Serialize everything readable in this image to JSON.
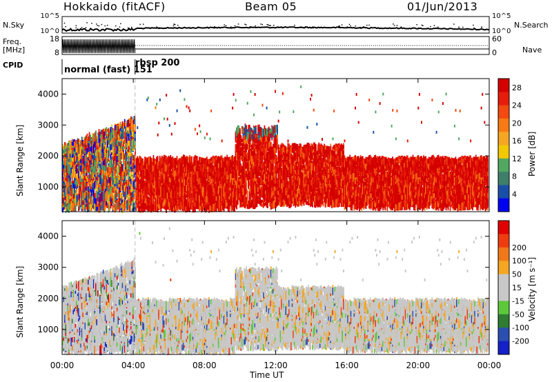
{
  "header": {
    "title": "Hokkaido (fitACF)",
    "beam": "Beam 05",
    "date": "01/Jun/2013"
  },
  "strip_labels": {
    "nsky": "N.Sky",
    "freq_line1": "Freq.",
    "freq_line2": "[MHz]",
    "cpid": "CPID",
    "nsearch": "N.Search",
    "nave": "Nave"
  },
  "cpid_segments": [
    "normal (fast) 151",
    "rbsp 200"
  ],
  "colors": {
    "power": [
      "#0000f0",
      "#1a4fa8",
      "#3f7f6a",
      "#52a860",
      "#f2c800",
      "#f5a623",
      "#f77a14",
      "#f24a10",
      "#e61c0a",
      "#d40000"
    ],
    "velocity": [
      "#1420c8",
      "#2a4fb0",
      "#2e7d32",
      "#5cc83a",
      "#c8c8c8",
      "#c8c8c8",
      "#f5a623",
      "#f07818",
      "#ee3c10",
      "#e00000"
    ]
  },
  "chart_data": [
    {
      "type": "heatmap",
      "title": "Power",
      "xlabel": "Time UT",
      "ylabel": "Slant Range [km]",
      "colorbar_label": "Power [dB]",
      "colorbar_ticks": [
        "4",
        "8",
        "12",
        "16",
        "20",
        "24",
        "28"
      ],
      "colorbar_range": [
        0,
        30
      ],
      "y_ticks": [
        "1000",
        "2000",
        "3000",
        "4000"
      ],
      "ylim": [
        200,
        4500
      ],
      "x_ticks": [
        "00:00",
        "04:00",
        "08:00",
        "12:00",
        "16:00",
        "20:00",
        "00:00"
      ],
      "xlim": [
        0,
        24
      ]
    },
    {
      "type": "heatmap",
      "title": "Velocity",
      "xlabel": "Time UT",
      "ylabel": "Slant Range [km]",
      "colorbar_label": "Velocity [m s⁻¹]",
      "colorbar_ticks": [
        "-200",
        "-100",
        "-50",
        "-15",
        "15",
        "50",
        "100",
        "200"
      ],
      "y_ticks": [
        "1000",
        "2000",
        "3000",
        "4000"
      ],
      "ylim": [
        200,
        4500
      ],
      "x_ticks": [
        "00:00",
        "04:00",
        "08:00",
        "12:00",
        "16:00",
        "20:00",
        "00:00"
      ],
      "xlim": [
        0,
        24
      ]
    },
    {
      "type": "line",
      "title": "N.Sky / N.Search",
      "left_axis_ticks": [
        "10^5",
        "10^0"
      ],
      "right_axis_ticks": [
        "10^5",
        "10^0"
      ]
    },
    {
      "type": "line",
      "title": "Freq. / Nave",
      "left_axis_ticks": [
        "18",
        "8"
      ],
      "right_axis_ticks": [
        "60",
        "0"
      ],
      "freq_mhz_range": [
        8,
        18
      ],
      "nave_range": [
        0,
        60
      ]
    }
  ]
}
